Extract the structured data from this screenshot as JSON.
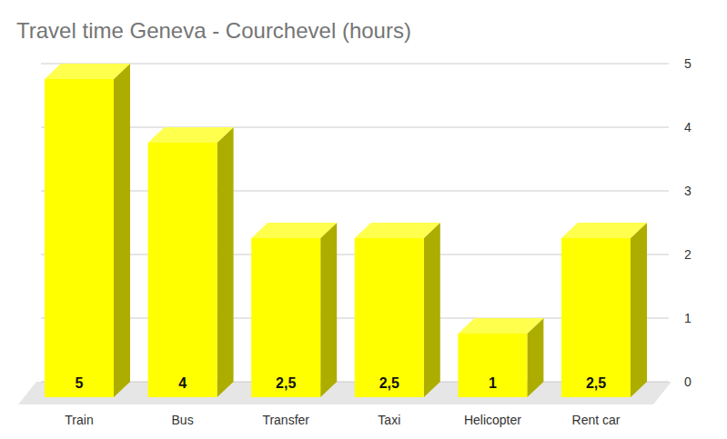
{
  "chart_data": {
    "type": "bar",
    "title": "Travel time Geneva - Courchevel (hours)",
    "categories": [
      "Train",
      "Bus",
      "Transfer",
      "Taxi",
      "Helicopter",
      "Rent car"
    ],
    "values": [
      5,
      4,
      2.5,
      2.5,
      1,
      2.5
    ],
    "value_labels": [
      "5",
      "4",
      "2,5",
      "2,5",
      "1",
      "2,5"
    ],
    "color": "#ffff00",
    "ylim": [
      0,
      5
    ],
    "yticks": [
      0,
      1,
      2,
      3,
      4,
      5
    ],
    "grid": true,
    "data_labels": true
  }
}
